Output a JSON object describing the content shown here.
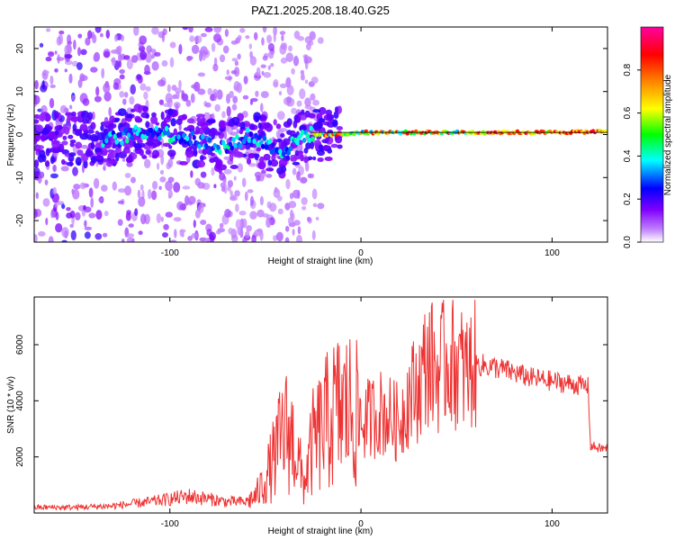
{
  "figure_title": "PAZ1.2025.208.18.40.G25",
  "chart_data": [
    {
      "type": "heatmap",
      "xlabel": "Height of straight line (km)",
      "ylabel": "Frequency (Hz)",
      "xlim": [
        -171,
        129
      ],
      "ylim": [
        -25,
        25
      ],
      "x_ticks": [
        -100,
        0,
        100
      ],
      "y_ticks": [
        -20,
        -10,
        0,
        10,
        20
      ],
      "colorbar": {
        "label": "Normalized spectral amplitude",
        "range": [
          0,
          1
        ],
        "ticks": [
          0.0,
          0.2,
          0.4,
          0.6,
          0.8
        ],
        "colors": [
          "#ffffff",
          "#8000ff",
          "#0000ff",
          "#00ffff",
          "#00ff00",
          "#ffff00",
          "#ff8000",
          "#ff0000",
          "#ff00a0"
        ]
      },
      "ridge": {
        "x": [
          -130,
          -120,
          -110,
          -100,
          -90,
          -80,
          -70,
          -65,
          -60,
          -55,
          -50,
          -45,
          -40,
          -35,
          -30,
          -25,
          -20,
          -10,
          0,
          10,
          20,
          40,
          60,
          80,
          100,
          129
        ],
        "y": [
          -1,
          0,
          1,
          0,
          -1,
          -2,
          -3,
          -2,
          0,
          -1,
          -2,
          -3,
          -4,
          -2,
          0,
          0,
          0,
          0,
          0.5,
          0.5,
          0.5,
          0.5,
          0.5,
          0.5,
          0.5,
          0.7
        ]
      },
      "grid": false
    },
    {
      "type": "line",
      "xlabel": "Height of straight line (km)",
      "ylabel": "SNR (10 * v/v)",
      "xlim": [
        -171,
        129
      ],
      "ylim": [
        0,
        7700
      ],
      "x_ticks": [
        -100,
        0,
        100
      ],
      "y_ticks": [
        2000,
        4000,
        6000
      ],
      "series": [
        {
          "color": "#ee3333",
          "x": [
            -171,
            -150,
            -130,
            -110,
            -100,
            -90,
            -80,
            -70,
            -60,
            -55,
            -50,
            -45,
            -40,
            -35,
            -30,
            -25,
            -20,
            -15,
            -10,
            -5,
            0,
            10,
            20,
            25,
            30,
            35,
            40,
            45,
            50,
            55,
            60,
            70,
            80,
            90,
            100,
            110,
            115,
            119,
            120,
            125,
            129
          ],
          "y": [
            200,
            200,
            250,
            400,
            500,
            600,
            500,
            400,
            400,
            600,
            1200,
            2000,
            3000,
            2500,
            1000,
            2500,
            3000,
            3500,
            3700,
            3700,
            3200,
            3600,
            3200,
            4200,
            4500,
            5500,
            5000,
            5500,
            5300,
            5000,
            5300,
            5200,
            5000,
            4800,
            4700,
            4600,
            4550,
            4500,
            2400,
            2300,
            2300
          ]
        }
      ],
      "grid": false
    }
  ]
}
